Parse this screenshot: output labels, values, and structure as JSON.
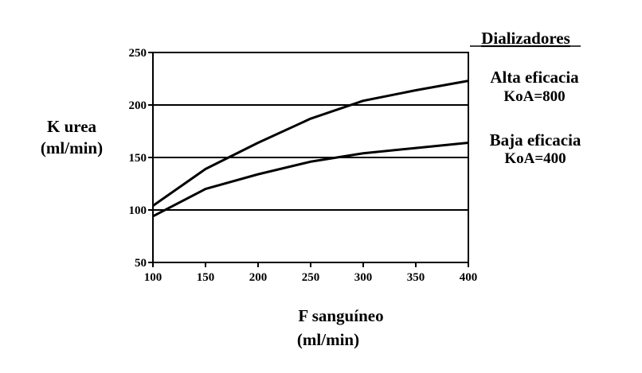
{
  "chart_data": {
    "type": "line",
    "title": "",
    "xlabel": [
      "F sanguíneo",
      "(ml/min)"
    ],
    "ylabel": [
      "K urea",
      "(ml/min)"
    ],
    "xlim": [
      100,
      400
    ],
    "ylim": [
      50,
      250
    ],
    "x_ticks": [
      "100",
      "150",
      "200",
      "250",
      "300",
      "350",
      "400"
    ],
    "y_ticks": [
      "250",
      "200",
      "150",
      "100",
      "50"
    ],
    "grid": "horizontal",
    "legend_title": "Dializadores",
    "series": [
      {
        "name": "Alta eficacia",
        "sublabel": "KoA=800",
        "color": "#000000",
        "x": [
          100,
          150,
          200,
          250,
          300,
          350,
          400
        ],
        "values": [
          104,
          139,
          164,
          187,
          204,
          214,
          223
        ]
      },
      {
        "name": "Baja eficacia",
        "sublabel": "KoA=400",
        "color": "#000000",
        "x": [
          100,
          150,
          200,
          250,
          300,
          350,
          400
        ],
        "values": [
          94,
          120,
          134,
          146,
          154,
          159,
          164
        ]
      }
    ]
  }
}
